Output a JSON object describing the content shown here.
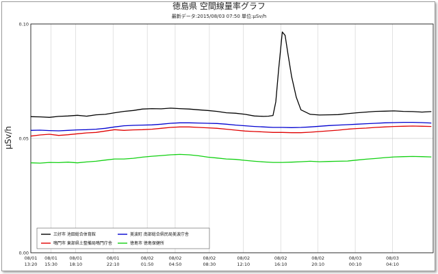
{
  "chart_data": {
    "type": "line",
    "title": "徳島県 空間線量率グラフ",
    "subtitle": "最新データ:2015/08/03 07:50 単位:μSv/h",
    "ylabel": "μSv/h",
    "ylim": [
      0,
      0.1
    ],
    "yticks": [
      "0.00",
      "0.05",
      "0.10"
    ],
    "ytick_values": [
      0,
      0.05,
      0.1
    ],
    "grid": true,
    "x_range": [
      0,
      43.2
    ],
    "xticks": [
      {
        "pos": 0,
        "l1": "08/01",
        "l2": "13:20"
      },
      {
        "pos": 2.17,
        "l1": "08/01",
        "l2": "15:30"
      },
      {
        "pos": 4.83,
        "l1": "08/01",
        "l2": "18:10"
      },
      {
        "pos": 8.83,
        "l1": "08/01",
        "l2": "22:10"
      },
      {
        "pos": 12.5,
        "l1": "08/02",
        "l2": "01:50"
      },
      {
        "pos": 15.5,
        "l1": "08/02",
        "l2": "04:50"
      },
      {
        "pos": 19.17,
        "l1": "08/02",
        "l2": "08:30"
      },
      {
        "pos": 22.83,
        "l1": "08/02",
        "l2": "12:10"
      },
      {
        "pos": 26.83,
        "l1": "08/02",
        "l2": "16:10"
      },
      {
        "pos": 30.83,
        "l1": "08/02",
        "l2": "20:10"
      },
      {
        "pos": 34.83,
        "l1": "08/03",
        "l2": "00:10"
      },
      {
        "pos": 38.83,
        "l1": "08/03",
        "l2": "04:10"
      }
    ],
    "legend_position": "bottom-left",
    "series": [
      {
        "name": "三好市 池田総合体育館",
        "color": "#000000",
        "x": [
          0,
          1,
          2,
          3,
          4,
          5,
          6,
          7,
          8,
          9,
          10,
          11,
          12,
          13,
          14,
          15,
          16,
          17,
          18,
          19,
          20,
          21,
          22,
          23,
          24,
          25,
          25.5,
          26,
          26.3,
          26.6,
          27,
          27.3,
          27.6,
          28,
          28.5,
          29,
          30,
          31,
          32,
          33,
          34,
          35,
          36,
          37,
          38,
          39,
          40,
          41,
          42,
          43
        ],
        "y": [
          0.0595,
          0.0594,
          0.0592,
          0.0596,
          0.0598,
          0.0601,
          0.0597,
          0.0603,
          0.0605,
          0.0612,
          0.0618,
          0.0622,
          0.0628,
          0.063,
          0.0629,
          0.0632,
          0.063,
          0.0628,
          0.0625,
          0.0622,
          0.0618,
          0.0612,
          0.061,
          0.0605,
          0.0598,
          0.0596,
          0.0597,
          0.06,
          0.066,
          0.08,
          0.0965,
          0.095,
          0.087,
          0.077,
          0.068,
          0.0625,
          0.0605,
          0.0602,
          0.0603,
          0.0604,
          0.0608,
          0.0612,
          0.0615,
          0.0618,
          0.0619,
          0.062,
          0.0618,
          0.0617,
          0.0615,
          0.0617
        ]
      },
      {
        "name": "鳴門市 東部県土整備局鳴門庁舎",
        "color": "#e00000",
        "x": [
          0,
          1,
          2,
          3,
          4,
          5,
          6,
          7,
          8,
          9,
          10,
          11,
          12,
          13,
          14,
          15,
          16,
          17,
          18,
          19,
          20,
          21,
          22,
          23,
          24,
          25,
          26,
          27,
          28,
          29,
          30,
          31,
          32,
          33,
          34,
          35,
          36,
          37,
          38,
          39,
          40,
          41,
          42,
          43
        ],
        "y": [
          0.051,
          0.0515,
          0.0518,
          0.0513,
          0.0516,
          0.052,
          0.0524,
          0.0526,
          0.0532,
          0.0538,
          0.0535,
          0.0537,
          0.0538,
          0.054,
          0.0544,
          0.0548,
          0.055,
          0.055,
          0.0548,
          0.0546,
          0.0544,
          0.054,
          0.0536,
          0.0532,
          0.053,
          0.0528,
          0.0526,
          0.0526,
          0.0525,
          0.0525,
          0.0527,
          0.053,
          0.0533,
          0.0536,
          0.054,
          0.0543,
          0.0545,
          0.0548,
          0.055,
          0.0552,
          0.0553,
          0.0554,
          0.0553,
          0.0552
        ]
      },
      {
        "name": "美波町 南部総合県民局美波庁舎",
        "color": "#0000d0",
        "x": [
          0,
          1,
          2,
          3,
          4,
          5,
          6,
          7,
          8,
          9,
          10,
          11,
          12,
          13,
          14,
          15,
          16,
          17,
          18,
          19,
          20,
          21,
          22,
          23,
          24,
          25,
          26,
          27,
          28,
          29,
          30,
          31,
          32,
          33,
          34,
          35,
          36,
          37,
          38,
          39,
          40,
          41,
          42,
          43
        ],
        "y": [
          0.0535,
          0.0536,
          0.0534,
          0.0533,
          0.0535,
          0.0537,
          0.0538,
          0.054,
          0.0544,
          0.055,
          0.0555,
          0.0557,
          0.0558,
          0.0559,
          0.0562,
          0.0566,
          0.0568,
          0.0568,
          0.0567,
          0.0566,
          0.0565,
          0.0562,
          0.0558,
          0.0555,
          0.0552,
          0.055,
          0.0548,
          0.0548,
          0.0547,
          0.0548,
          0.055,
          0.0553,
          0.0556,
          0.0558,
          0.056,
          0.0562,
          0.0564,
          0.0566,
          0.0568,
          0.0569,
          0.057,
          0.057,
          0.0569,
          0.0567
        ]
      },
      {
        "name": "徳島市 徳島保健所",
        "color": "#10d010",
        "x": [
          0,
          1,
          2,
          3,
          4,
          5,
          6,
          7,
          8,
          9,
          10,
          11,
          12,
          13,
          14,
          15,
          16,
          17,
          18,
          19,
          20,
          21,
          22,
          23,
          24,
          25,
          26,
          27,
          28,
          29,
          30,
          31,
          32,
          33,
          34,
          35,
          36,
          37,
          38,
          39,
          40,
          41,
          42,
          43
        ],
        "y": [
          0.0393,
          0.0392,
          0.0395,
          0.0394,
          0.0396,
          0.0393,
          0.0397,
          0.04,
          0.0405,
          0.041,
          0.041,
          0.0413,
          0.0418,
          0.0422,
          0.0425,
          0.0428,
          0.043,
          0.0428,
          0.0424,
          0.0418,
          0.0414,
          0.041,
          0.0408,
          0.0404,
          0.04,
          0.0397,
          0.0395,
          0.0395,
          0.0396,
          0.0398,
          0.04,
          0.0398,
          0.0399,
          0.04,
          0.0401,
          0.0405,
          0.0409,
          0.0412,
          0.0416,
          0.0419,
          0.042,
          0.0421,
          0.042,
          0.0419
        ]
      }
    ]
  }
}
